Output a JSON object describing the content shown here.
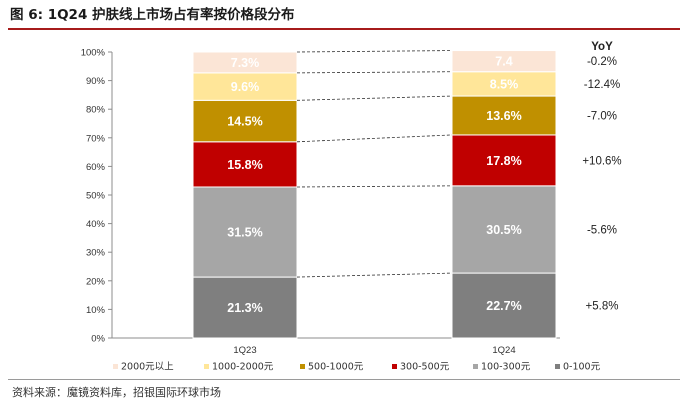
{
  "page": {
    "title": "图 6: 1Q24 护肤线上市场占有率按价格段分布",
    "source": "资料来源：魔镜资料库，招银国际环球市场"
  },
  "chart_data": {
    "type": "bar",
    "stacked": true,
    "categories": [
      "1Q23",
      "1Q24"
    ],
    "y_ticks": [
      "0%",
      "10%",
      "20%",
      "30%",
      "40%",
      "50%",
      "60%",
      "70%",
      "80%",
      "90%",
      "100%"
    ],
    "ylim": [
      0,
      100
    ],
    "series": [
      {
        "name": "0-100元",
        "values": [
          21.3,
          22.7
        ],
        "labels": [
          "21.3%",
          "22.7%"
        ],
        "color": "#7f7f7f",
        "text_color": "#ffffff",
        "yoy": "+5.8%"
      },
      {
        "name": "100-300元",
        "values": [
          31.5,
          30.5
        ],
        "labels": [
          "31.5%",
          "30.5%"
        ],
        "color": "#a6a6a6",
        "text_color": "#ffffff",
        "yoy": "-5.6%"
      },
      {
        "name": "300-500元",
        "values": [
          15.8,
          17.8
        ],
        "labels": [
          "15.8%",
          "17.8%"
        ],
        "color": "#c00000",
        "text_color": "#ffffff",
        "yoy": "+10.6%"
      },
      {
        "name": "500-1000元",
        "values": [
          14.5,
          13.6
        ],
        "labels": [
          "14.5%",
          "13.6%"
        ],
        "color": "#c09000",
        "text_color": "#ffffff",
        "yoy": "-7.0%"
      },
      {
        "name": "1000-2000元",
        "values": [
          9.6,
          8.5
        ],
        "labels": [
          "9.6%",
          "8.5%"
        ],
        "color": "#ffe699",
        "text_color": "#ffffff",
        "yoy": "-12.4%"
      },
      {
        "name": "2000元以上",
        "values": [
          7.3,
          7.4
        ],
        "labels": [
          "7.3%",
          "7.4"
        ],
        "color": "#fbe5d6",
        "text_color": "#ffffff",
        "yoy": "-0.2%"
      }
    ],
    "legend_order": [
      "2000元以上",
      "1000-2000元",
      "500-1000元",
      "300-500元",
      "100-300元",
      "0-100元"
    ],
    "yoy_header": "YoY",
    "legend_position": "bottom",
    "grid": false
  }
}
